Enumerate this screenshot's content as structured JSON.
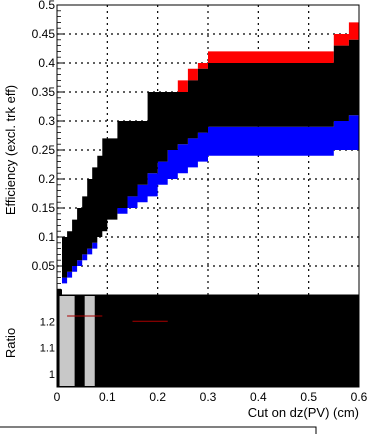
{
  "chart_data": [
    {
      "type": "area",
      "ylabel": "Efficiency (excl. trk eff)",
      "xlim": [
        0,
        0.6
      ],
      "ylim": [
        0,
        0.5
      ],
      "grid": true,
      "x_ticks": [],
      "y_ticks": [
        "0.05",
        "0.1",
        "0.15",
        "0.2",
        "0.25",
        "0.3",
        "0.35",
        "0.4",
        "0.45",
        "0.5"
      ],
      "x": [
        0.0,
        0.01,
        0.02,
        0.03,
        0.04,
        0.05,
        0.06,
        0.07,
        0.08,
        0.09,
        0.1,
        0.12,
        0.14,
        0.16,
        0.18,
        0.2,
        0.22,
        0.24,
        0.26,
        0.28,
        0.3,
        0.35,
        0.4,
        0.45,
        0.5,
        0.52,
        0.55,
        0.58,
        0.6
      ],
      "series": [
        {
          "color": "#ff0000",
          "upper": [
            0.01,
            0.1,
            0.11,
            0.13,
            0.15,
            0.17,
            0.2,
            0.22,
            0.24,
            0.27,
            0.27,
            0.3,
            0.3,
            0.3,
            0.35,
            0.35,
            0.35,
            0.37,
            0.39,
            0.4,
            0.42,
            0.42,
            0.42,
            0.42,
            0.42,
            0.42,
            0.45,
            0.47,
            0.47
          ]
        },
        {
          "color": "#000000",
          "upper": [
            0.01,
            0.1,
            0.11,
            0.13,
            0.15,
            0.17,
            0.2,
            0.22,
            0.24,
            0.27,
            0.27,
            0.3,
            0.3,
            0.3,
            0.35,
            0.35,
            0.35,
            0.35,
            0.37,
            0.39,
            0.4,
            0.4,
            0.4,
            0.4,
            0.4,
            0.4,
            0.43,
            0.44,
            0.44
          ],
          "lower": [
            0.0,
            0.03,
            0.04,
            0.05,
            0.06,
            0.07,
            0.08,
            0.09,
            0.1,
            0.11,
            0.13,
            0.15,
            0.17,
            0.19,
            0.21,
            0.23,
            0.25,
            0.26,
            0.27,
            0.28,
            0.29,
            0.29,
            0.29,
            0.29,
            0.29,
            0.29,
            0.3,
            0.31,
            0.31
          ]
        },
        {
          "color": "#0000ff",
          "lower": [
            0.0,
            0.02,
            0.03,
            0.04,
            0.05,
            0.06,
            0.07,
            0.08,
            0.1,
            0.11,
            0.13,
            0.14,
            0.15,
            0.16,
            0.17,
            0.19,
            0.2,
            0.21,
            0.22,
            0.23,
            0.24,
            0.24,
            0.24,
            0.24,
            0.24,
            0.24,
            0.25,
            0.25,
            0.25
          ]
        }
      ]
    },
    {
      "type": "area",
      "xlabel": "Cut on dz(PV) (cm)",
      "ylabel": "Ratio",
      "xlim": [
        0,
        0.6
      ],
      "ylim": [
        0.95,
        1.3
      ],
      "x_ticks": [
        "0",
        "0.1",
        "0.2",
        "0.3",
        "0.4",
        "0.5",
        "0.6"
      ],
      "y_ticks": [
        "1",
        "1.1",
        "1.2"
      ],
      "gray_bands": [
        [
          0.005,
          0.035
        ],
        [
          0.055,
          0.075
        ]
      ]
    }
  ]
}
